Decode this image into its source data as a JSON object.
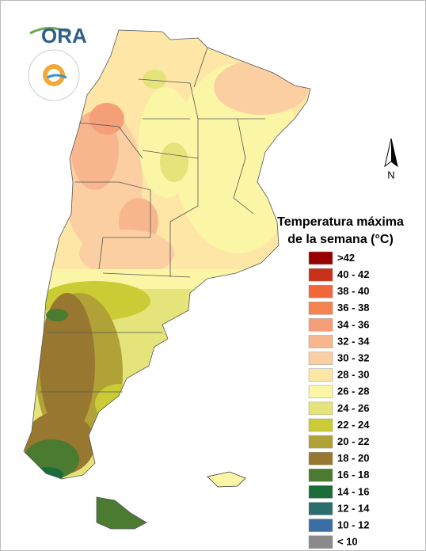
{
  "logo": {
    "text": "ORA"
  },
  "north_label": "N",
  "legend": {
    "title_lines": [
      "Temperatura máxima",
      "de la semana (°C)"
    ],
    "items": [
      {
        "label": ">42",
        "color": "#990000"
      },
      {
        "label": "40 - 42",
        "color": "#c8321a"
      },
      {
        "label": "38 - 40",
        "color": "#f2663a"
      },
      {
        "label": "36 - 38",
        "color": "#f5834f"
      },
      {
        "label": "34 - 36",
        "color": "#f59f78"
      },
      {
        "label": "32 - 34",
        "color": "#f8b68e"
      },
      {
        "label": "30 - 32",
        "color": "#fbcfa2"
      },
      {
        "label": "28 - 30",
        "color": "#fde6a6"
      },
      {
        "label": "26 - 28",
        "color": "#fbf6a6"
      },
      {
        "label": "24 - 26",
        "color": "#e4e47a"
      },
      {
        "label": "22 - 24",
        "color": "#cbcb36"
      },
      {
        "label": "20 - 22",
        "color": "#b0a236"
      },
      {
        "label": "18 - 20",
        "color": "#987830"
      },
      {
        "label": "16 - 18",
        "color": "#4b7a31"
      },
      {
        "label": "14 - 16",
        "color": "#1b6c3b"
      },
      {
        "label": "12 - 14",
        "color": "#2b6d6d"
      },
      {
        "label": "10 - 12",
        "color": "#3b6ea5"
      },
      {
        "label": "< 10",
        "color": "#8a8a8a"
      }
    ]
  }
}
